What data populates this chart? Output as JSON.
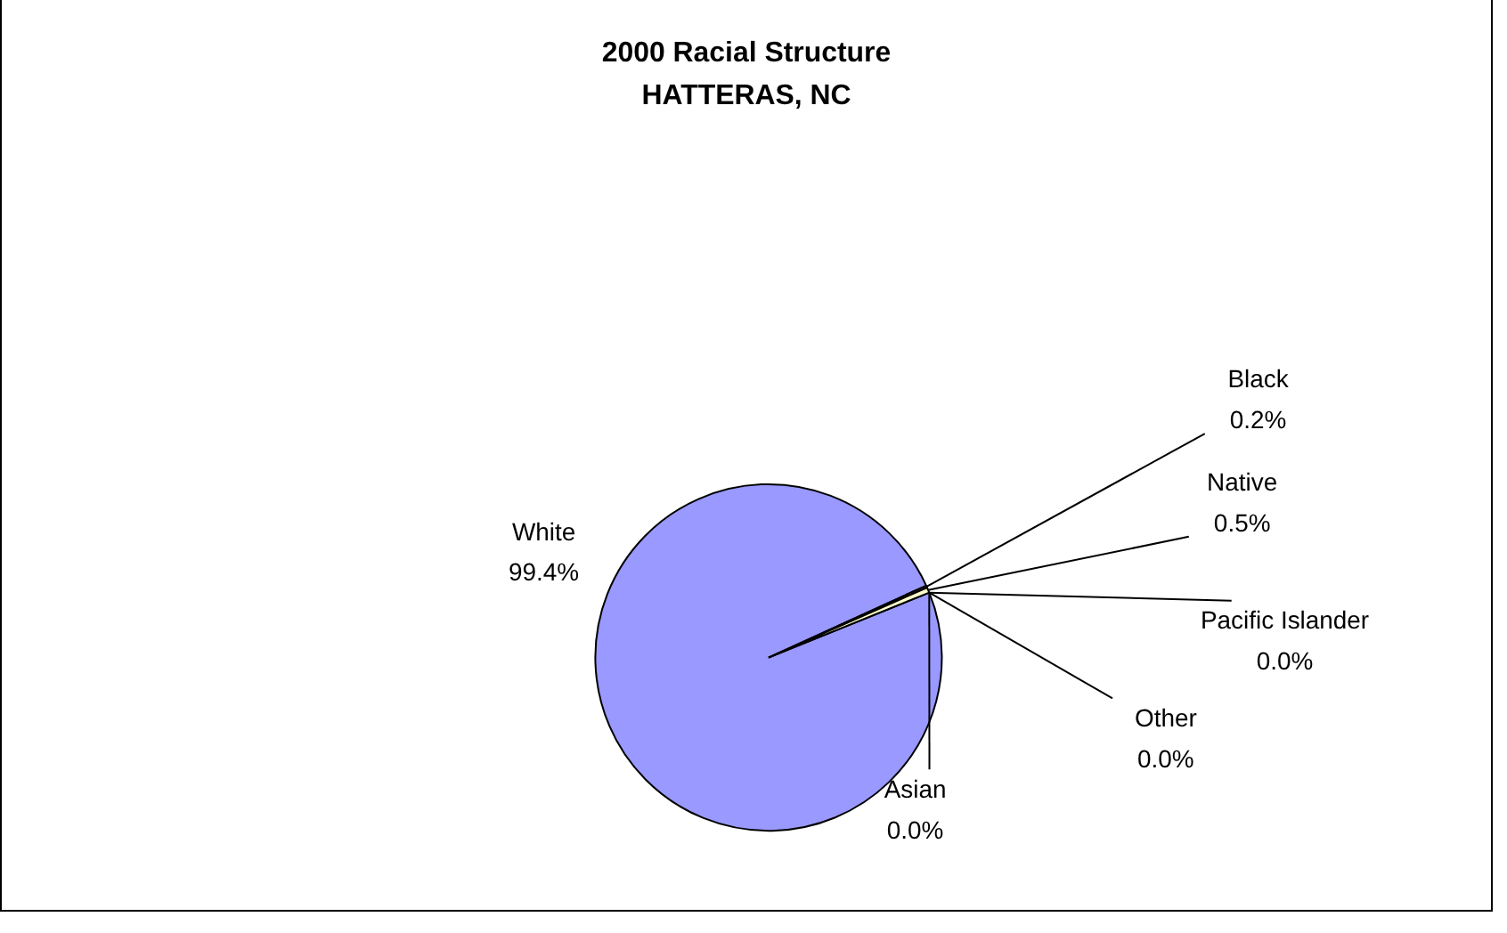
{
  "chart_data": {
    "type": "pie",
    "title": "2000 Racial Structure\nHATTERAS, NC",
    "categories": [
      "White",
      "Black",
      "Native",
      "Asian",
      "Pacific Islander",
      "Other"
    ],
    "values": [
      99.4,
      0.2,
      0.5,
      0.0,
      0.0,
      0.0
    ],
    "colors": [
      "#9999ff",
      "#993366",
      "#ffffcc",
      "#ccffff",
      "#660066",
      "#ff8080"
    ],
    "value_labels": [
      "99.4%",
      "0.2%",
      "0.5%",
      "0.0%",
      "0.0%",
      "0.0%"
    ],
    "legend": false
  }
}
